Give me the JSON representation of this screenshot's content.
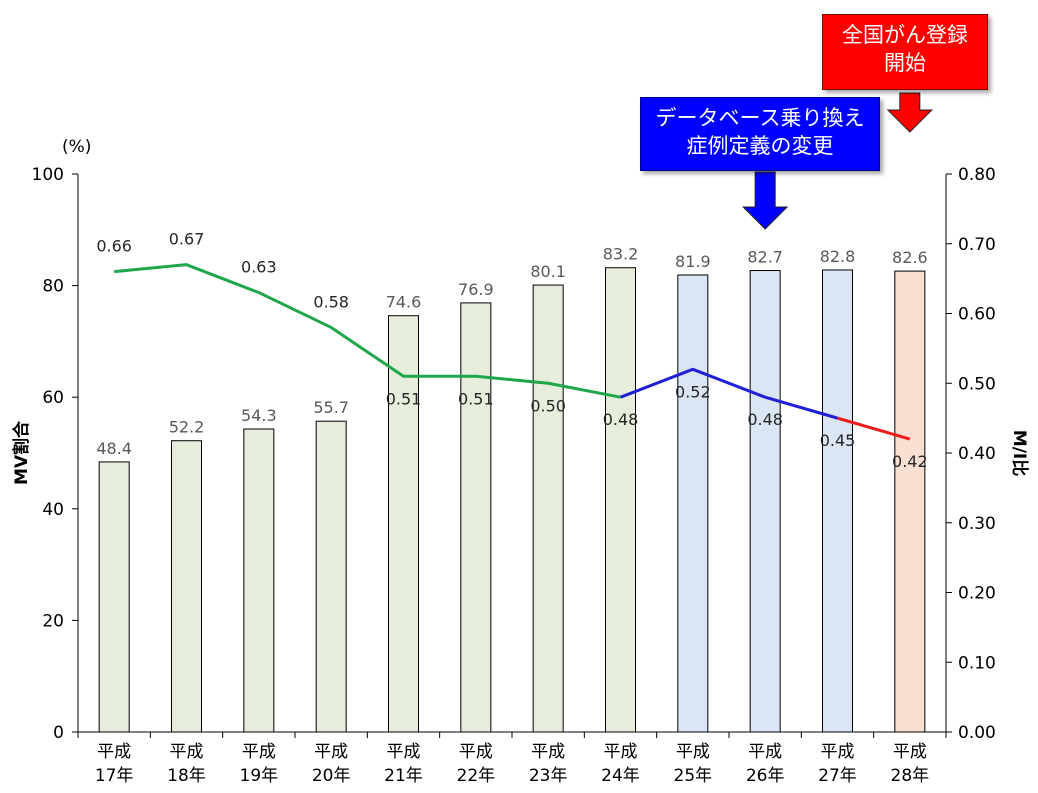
{
  "chart_data": {
    "type": "bar",
    "categories": [
      "平成\n17年",
      "平成\n18年",
      "平成\n19年",
      "平成\n20年",
      "平成\n21年",
      "平成\n22年",
      "平成\n23年",
      "平成\n24年",
      "平成\n25年",
      "平成\n26年",
      "平成\n27年",
      "平成\n28年"
    ],
    "series": [
      {
        "name": "MV割合",
        "type": "bar",
        "axis": "left",
        "values": [
          48.4,
          52.2,
          54.3,
          55.7,
          74.6,
          76.9,
          80.1,
          83.2,
          81.9,
          82.7,
          82.8,
          82.6
        ],
        "labels": [
          "48.4",
          "52.2",
          "54.3",
          "55.7",
          "74.6",
          "76.9",
          "80.1",
          "83.2",
          "81.9",
          "82.7",
          "82.8",
          "82.6"
        ],
        "fill_colors": [
          "#e6eedb",
          "#e6eedb",
          "#e6eedb",
          "#e6eedb",
          "#e6eedb",
          "#e6eedb",
          "#e6eedb",
          "#e6eedb",
          "#dbe6f4",
          "#dbe6f4",
          "#dbe6f4",
          "#f9dfd2"
        ]
      },
      {
        "name": "M/I比",
        "type": "line",
        "axis": "right",
        "values": [
          0.66,
          0.67,
          0.63,
          0.58,
          0.51,
          0.51,
          0.5,
          0.48,
          0.52,
          0.48,
          0.45,
          0.42
        ],
        "labels": [
          "0.66",
          "0.67",
          "0.63",
          "0.58",
          "0.51",
          "0.51",
          "0.50",
          "0.48",
          "0.52",
          "0.48",
          "0.45",
          "0.42"
        ],
        "segment_colors": [
          {
            "from": 0,
            "to": 7,
            "color": "#1fa64a"
          },
          {
            "from": 7,
            "to": 10,
            "color": "#1f1fd6"
          },
          {
            "from": 10,
            "to": 11,
            "color": "#ee1c1c"
          }
        ]
      }
    ],
    "ylabel": "MV割合",
    "yunit": "(%)",
    "y2label": "M/I比",
    "ylim": [
      0,
      100
    ],
    "y2lim": [
      0,
      0.8
    ],
    "yticks": [
      "0",
      "20",
      "40",
      "60",
      "80",
      "100"
    ],
    "y2ticks": [
      "0.00",
      "0.10",
      "0.20",
      "0.30",
      "0.40",
      "0.50",
      "0.60",
      "0.70",
      "0.80"
    ],
    "grid": false,
    "annotations": [
      {
        "lines": [
          "全国がん登録",
          "開始"
        ],
        "color": "#ff0000",
        "arrow_at_category": 11
      },
      {
        "lines": [
          "データベース乗り換え",
          "症例定義の変更"
        ],
        "color": "#0000ff",
        "arrow_at_category": 9
      }
    ]
  }
}
